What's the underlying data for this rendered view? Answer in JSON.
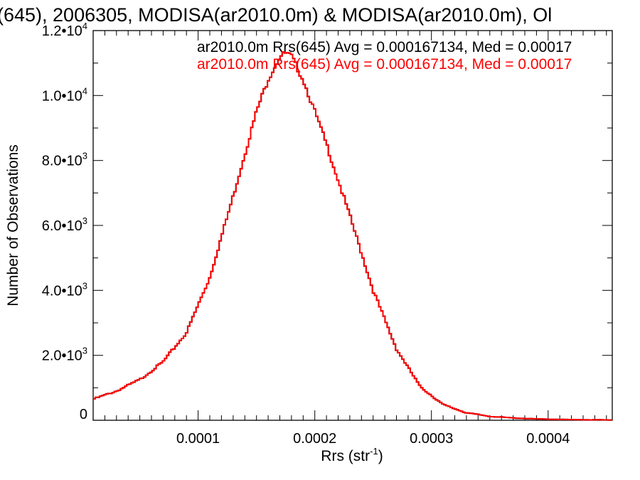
{
  "chart_data": {
    "type": "histogram",
    "title": "(645), 2006305, MODISA(ar2010.0m) & MODISA(ar2010.0m), Ol",
    "xlabel": "Rrs (str",
    "xlabel_sup": "-1",
    "xlabel_close": ")",
    "ylabel": "Number of Observations",
    "xlim": [
      1e-05,
      0.000455
    ],
    "ylim": [
      0,
      12000
    ],
    "x_ticks": [
      {
        "value": 0.0001,
        "label": "0.0001"
      },
      {
        "value": 0.0002,
        "label": "0.0002"
      },
      {
        "value": 0.0003,
        "label": "0.0003"
      },
      {
        "value": 0.0004,
        "label": "0.0004"
      }
    ],
    "y_ticks": [
      {
        "value": 0,
        "mant": "0",
        "exp": ""
      },
      {
        "value": 2000,
        "mant": "2.0•10",
        "exp": "3"
      },
      {
        "value": 4000,
        "mant": "4.0•10",
        "exp": "3"
      },
      {
        "value": 6000,
        "mant": "6.0•10",
        "exp": "3"
      },
      {
        "value": 8000,
        "mant": "8.0•10",
        "exp": "3"
      },
      {
        "value": 10000,
        "mant": "1.0•10",
        "exp": "4"
      },
      {
        "value": 12000,
        "mant": "1.2•10",
        "exp": "4"
      }
    ],
    "annotations": [
      {
        "text": "ar2010.0m Rrs(645) Avg = 0.000167134, Med = 0.00017",
        "color": "#000000"
      },
      {
        "text": "ar2010.0m Rrs(645) Avg = 0.000167134, Med = 0.00017",
        "color": "#ff0000"
      }
    ],
    "series": [
      {
        "color": "#000000",
        "x": [
          1e-05,
          3e-05,
          5e-05,
          7e-05,
          9e-05,
          0.00011,
          0.00013,
          0.00015,
          0.00016,
          0.00017,
          0.000175,
          0.00018,
          0.00019,
          0.00021,
          0.00023,
          0.00025,
          0.00027,
          0.00029,
          0.00031,
          0.00033,
          0.00035,
          0.00037,
          0.00039,
          0.00041,
          0.00043,
          0.000455
        ],
        "y": [
          650,
          900,
          1250,
          1800,
          2700,
          4400,
          6900,
          9500,
          10500,
          11200,
          11300,
          11200,
          10500,
          8500,
          6300,
          4000,
          2200,
          1050,
          480,
          230,
          120,
          70,
          40,
          25,
          15,
          10
        ]
      },
      {
        "color": "#ff0000",
        "x": [
          1e-05,
          3e-05,
          5e-05,
          7e-05,
          9e-05,
          0.00011,
          0.00013,
          0.00015,
          0.00016,
          0.00017,
          0.000175,
          0.00018,
          0.00019,
          0.00021,
          0.00023,
          0.00025,
          0.00027,
          0.00029,
          0.00031,
          0.00033,
          0.00035,
          0.00037,
          0.00039,
          0.00041,
          0.00043,
          0.000455
        ],
        "y": [
          650,
          900,
          1250,
          1800,
          2700,
          4400,
          6900,
          9500,
          10500,
          11200,
          11300,
          11200,
          10500,
          8500,
          6300,
          4000,
          2200,
          1050,
          480,
          230,
          120,
          70,
          40,
          25,
          15,
          10
        ]
      }
    ]
  }
}
